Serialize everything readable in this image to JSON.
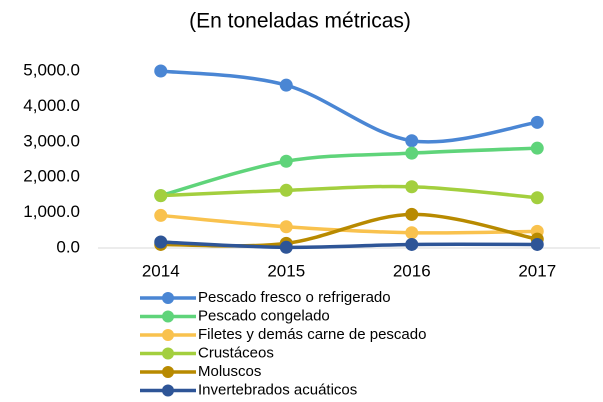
{
  "chart_data": {
    "type": "line",
    "title": "(En toneladas métricas)",
    "categories": [
      "2014",
      "2015",
      "2016",
      "2017"
    ],
    "series": [
      {
        "name": "Pescado fresco o refrigerado",
        "color": "#4a86d4",
        "values": [
          5000,
          4600,
          3030,
          3550
        ]
      },
      {
        "name": "Pescado congelado",
        "color": "#5fd47a",
        "values": [
          1480,
          2450,
          2680,
          2820
        ]
      },
      {
        "name": "Filetes y demás carne de pescado",
        "color": "#f9c24e",
        "values": [
          920,
          600,
          430,
          470
        ]
      },
      {
        "name": "Crustáceos",
        "color": "#a3cf3e",
        "values": [
          1480,
          1630,
          1730,
          1420
        ]
      },
      {
        "name": "Moluscos",
        "color": "#b88a00",
        "values": [
          100,
          130,
          950,
          250
        ]
      },
      {
        "name": "Invertebrados acuáticos",
        "color": "#2e5597",
        "values": [
          170,
          20,
          100,
          100
        ]
      }
    ],
    "ylim": [
      0,
      5000
    ],
    "yticks": [
      {
        "value": 0,
        "label": "0.0"
      },
      {
        "value": 1000,
        "label": "1,000.0"
      },
      {
        "value": 2000,
        "label": "2,000.0"
      },
      {
        "value": 3000,
        "label": "3,000.0"
      },
      {
        "value": 4000,
        "label": "4,000.0"
      },
      {
        "value": 5000,
        "label": "5,000.0"
      }
    ],
    "grid": false
  }
}
